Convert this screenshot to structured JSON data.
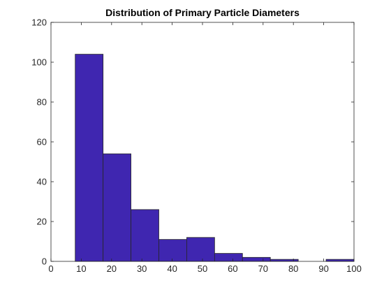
{
  "chart_data": {
    "type": "bar",
    "title": "Distribution of Primary Particle Diameters",
    "xlabel": "",
    "ylabel": "",
    "xlim": [
      0,
      100
    ],
    "ylim": [
      0,
      120
    ],
    "x_ticks": [
      0,
      10,
      20,
      30,
      40,
      50,
      60,
      70,
      80,
      90,
      100
    ],
    "y_ticks": [
      0,
      20,
      40,
      60,
      80,
      100,
      120
    ],
    "bin_edges": [
      8,
      17.2,
      26.4,
      35.6,
      44.8,
      54,
      63.2,
      72.4,
      81.6,
      90.8,
      100
    ],
    "values": [
      104,
      54,
      26,
      11,
      12,
      4,
      2,
      1,
      0,
      1
    ],
    "grid": false,
    "bar_color": "#3F26B0",
    "bar_edge_color": "#262626"
  }
}
